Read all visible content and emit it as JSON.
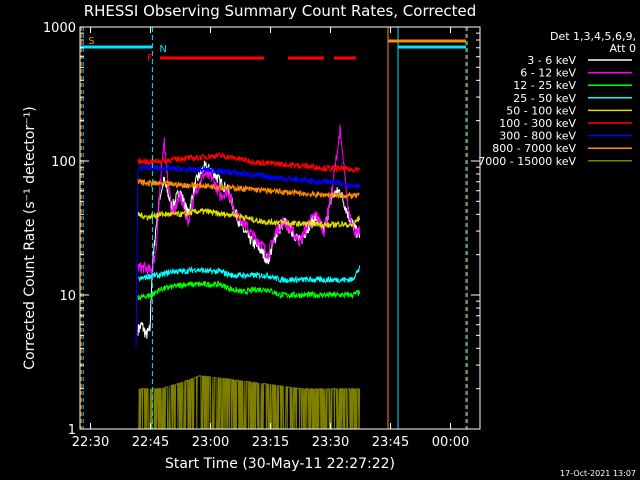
{
  "chart_data": {
    "type": "line",
    "title": "RHESSI Observing Summary Count Rates, Corrected",
    "xlabel": "Start Time (30-May-11 22:27:22)",
    "ylabel": "Corrected Count Rate (s⁻¹ detector⁻¹)",
    "yscale": "log",
    "ylim": [
      1,
      1000
    ],
    "xlim_minutes": [
      0,
      100
    ],
    "x_ticks": [
      {
        "label": "22:30",
        "min": 2.63
      },
      {
        "label": "22:45",
        "min": 17.63
      },
      {
        "label": "23:00",
        "min": 32.63
      },
      {
        "label": "23:15",
        "min": 47.63
      },
      {
        "label": "23:30",
        "min": 62.63
      },
      {
        "label": "23:45",
        "min": 77.63
      },
      {
        "label": "00:00",
        "min": 92.63
      }
    ],
    "y_ticks": [
      {
        "label": "1",
        "v": 1
      },
      {
        "label": "10",
        "v": 10
      },
      {
        "label": "100",
        "v": 100
      },
      {
        "label": "1000",
        "v": 1000
      }
    ],
    "legend_header": [
      "Det 1,3,4,5,6,9,",
      "Att 0"
    ],
    "legend_position": "right",
    "timestamp": "17-Oct-2021 13:07",
    "flags": [
      {
        "label": "S",
        "color": "#ff8c00",
        "min": 0.3
      },
      {
        "label": "N",
        "color": "#00e5ff",
        "min": 18.1
      },
      {
        "label": "F",
        "color": "#ff0000",
        "min": 18.0
      }
    ],
    "series": [
      {
        "name": "3 - 6 keV",
        "color": "#ffffff",
        "points": [
          [
            14.5,
            5.5
          ],
          [
            15.5,
            6
          ],
          [
            16.5,
            5
          ],
          [
            17.5,
            5.5
          ],
          [
            18,
            15
          ],
          [
            19,
            32
          ],
          [
            20,
            55
          ],
          [
            21,
            72
          ],
          [
            23,
            45
          ],
          [
            25,
            60
          ],
          [
            27,
            40
          ],
          [
            29,
            70
          ],
          [
            31,
            90
          ],
          [
            33,
            85
          ],
          [
            35,
            70
          ],
          [
            37,
            60
          ],
          [
            39,
            40
          ],
          [
            41,
            30
          ],
          [
            43,
            25
          ],
          [
            45,
            22
          ],
          [
            47,
            18
          ],
          [
            49,
            28
          ],
          [
            51,
            35
          ],
          [
            53,
            30
          ],
          [
            55,
            25
          ],
          [
            57,
            32
          ],
          [
            59,
            38
          ],
          [
            61,
            30
          ],
          [
            63,
            55
          ],
          [
            65,
            60
          ],
          [
            67,
            40
          ],
          [
            69,
            30
          ],
          [
            70,
            28
          ]
        ]
      },
      {
        "name": "6 - 12 keV",
        "color": "#ff00ff",
        "points": [
          [
            14.5,
            16
          ],
          [
            16,
            16
          ],
          [
            18,
            15
          ],
          [
            19,
            22
          ],
          [
            20,
            60
          ],
          [
            21,
            150
          ],
          [
            22,
            70
          ],
          [
            23,
            40
          ],
          [
            25,
            55
          ],
          [
            27,
            35
          ],
          [
            29,
            60
          ],
          [
            31,
            80
          ],
          [
            33,
            75
          ],
          [
            35,
            55
          ],
          [
            37,
            60
          ],
          [
            39,
            40
          ],
          [
            41,
            35
          ],
          [
            43,
            28
          ],
          [
            45,
            25
          ],
          [
            47,
            20
          ],
          [
            49,
            30
          ],
          [
            51,
            36
          ],
          [
            53,
            30
          ],
          [
            55,
            25
          ],
          [
            57,
            34
          ],
          [
            59,
            40
          ],
          [
            61,
            30
          ],
          [
            63,
            60
          ],
          [
            65,
            170
          ],
          [
            67,
            45
          ],
          [
            69,
            28
          ],
          [
            70,
            30
          ]
        ]
      },
      {
        "name": "12 - 25 keV",
        "color": "#00ff00",
        "points": [
          [
            14.5,
            9.5
          ],
          [
            18,
            10
          ],
          [
            20,
            11
          ],
          [
            23,
            11.5
          ],
          [
            26,
            12
          ],
          [
            29,
            12
          ],
          [
            32,
            12
          ],
          [
            35,
            12
          ],
          [
            38,
            11
          ],
          [
            41,
            10.5
          ],
          [
            44,
            11
          ],
          [
            47,
            11
          ],
          [
            50,
            10
          ],
          [
            53,
            10
          ],
          [
            56,
            10
          ],
          [
            59,
            10
          ],
          [
            62,
            10
          ],
          [
            65,
            10
          ],
          [
            68,
            10
          ],
          [
            70,
            10.5
          ]
        ]
      },
      {
        "name": "25 - 50 keV",
        "color": "#00ffff",
        "points": [
          [
            14.5,
            13
          ],
          [
            18,
            14
          ],
          [
            20,
            14
          ],
          [
            23,
            15
          ],
          [
            26,
            15
          ],
          [
            29,
            15.5
          ],
          [
            32,
            15
          ],
          [
            35,
            15
          ],
          [
            38,
            14
          ],
          [
            41,
            14
          ],
          [
            44,
            14
          ],
          [
            47,
            14
          ],
          [
            50,
            13
          ],
          [
            53,
            13
          ],
          [
            56,
            13
          ],
          [
            59,
            13
          ],
          [
            62,
            13
          ],
          [
            65,
            13
          ],
          [
            68,
            13
          ],
          [
            70,
            16
          ]
        ]
      },
      {
        "name": "50 - 100 keV",
        "color": "#e0e000",
        "points": [
          [
            14.5,
            40
          ],
          [
            17,
            38
          ],
          [
            20,
            40
          ],
          [
            23,
            40
          ],
          [
            26,
            40
          ],
          [
            29,
            42
          ],
          [
            32,
            42
          ],
          [
            35,
            40
          ],
          [
            38,
            40
          ],
          [
            41,
            38
          ],
          [
            44,
            36
          ],
          [
            47,
            35
          ],
          [
            50,
            35
          ],
          [
            53,
            34
          ],
          [
            56,
            34
          ],
          [
            59,
            34
          ],
          [
            62,
            33
          ],
          [
            65,
            34
          ],
          [
            68,
            33
          ],
          [
            70,
            38
          ]
        ]
      },
      {
        "name": "100 - 300 keV",
        "color": "#ff0000",
        "points": [
          [
            14.5,
            100
          ],
          [
            17,
            98
          ],
          [
            20,
            100
          ],
          [
            23,
            102
          ],
          [
            26,
            105
          ],
          [
            29,
            105
          ],
          [
            32,
            108
          ],
          [
            35,
            110
          ],
          [
            38,
            106
          ],
          [
            41,
            102
          ],
          [
            44,
            98
          ],
          [
            47,
            96
          ],
          [
            50,
            95
          ],
          [
            53,
            93
          ],
          [
            56,
            92
          ],
          [
            59,
            90
          ],
          [
            62,
            88
          ],
          [
            65,
            88
          ],
          [
            68,
            86
          ],
          [
            70,
            88
          ]
        ]
      },
      {
        "name": "300 - 800 keV",
        "color": "#0000ff",
        "points": [
          [
            14,
            4
          ],
          [
            14.5,
            88
          ],
          [
            17,
            90
          ],
          [
            20,
            88
          ],
          [
            23,
            88
          ],
          [
            26,
            86
          ],
          [
            29,
            86
          ],
          [
            32,
            86
          ],
          [
            35,
            84
          ],
          [
            38,
            82
          ],
          [
            41,
            80
          ],
          [
            44,
            78
          ],
          [
            47,
            76
          ],
          [
            50,
            75
          ],
          [
            53,
            73
          ],
          [
            56,
            72
          ],
          [
            59,
            70
          ],
          [
            62,
            70
          ],
          [
            65,
            68
          ],
          [
            68,
            66
          ],
          [
            70,
            66
          ]
        ]
      },
      {
        "name": "800 - 7000 keV",
        "color": "#ff8c00",
        "points": [
          [
            14.5,
            70
          ],
          [
            17,
            68
          ],
          [
            20,
            68
          ],
          [
            23,
            67
          ],
          [
            26,
            66
          ],
          [
            29,
            66
          ],
          [
            32,
            65
          ],
          [
            35,
            64
          ],
          [
            38,
            63
          ],
          [
            41,
            62
          ],
          [
            44,
            61
          ],
          [
            47,
            60
          ],
          [
            50,
            59
          ],
          [
            53,
            58
          ],
          [
            56,
            57
          ],
          [
            59,
            56
          ],
          [
            62,
            56
          ],
          [
            65,
            55
          ],
          [
            68,
            55
          ],
          [
            70,
            55
          ]
        ]
      },
      {
        "name": "7000 - 15000 keV",
        "color": "#808000",
        "points": [
          [
            14.5,
            2
          ],
          [
            20,
            2
          ],
          [
            25,
            2.2
          ],
          [
            30,
            2.5
          ],
          [
            35,
            2.4
          ],
          [
            40,
            2.3
          ],
          [
            45,
            2.2
          ],
          [
            50,
            2.1
          ],
          [
            55,
            2
          ],
          [
            60,
            2
          ],
          [
            65,
            2
          ],
          [
            70,
            2
          ]
        ]
      }
    ]
  }
}
